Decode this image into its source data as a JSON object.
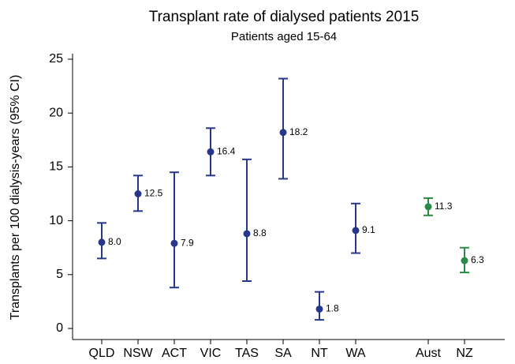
{
  "chart_data": {
    "type": "errorbar",
    "title": "Transplant rate of dialysed patients 2015",
    "subtitle": "Patients aged 15-64",
    "y_label": "Transplants per 100 dialysis-years (95% CI)",
    "categories": [
      "QLD",
      "NSW",
      "ACT",
      "VIC",
      "TAS",
      "SA",
      "NT",
      "WA",
      null,
      "Aust",
      "NZ"
    ],
    "values": [
      8.0,
      12.5,
      7.9,
      16.4,
      8.8,
      18.2,
      1.8,
      9.1,
      null,
      11.3,
      6.3
    ],
    "value_labels": [
      "8.0",
      "12.5",
      "7.9",
      "16.4",
      "8.8",
      "18.2",
      "1.8",
      "9.1",
      null,
      "11.3",
      "6.3"
    ],
    "ci_low": [
      6.5,
      10.9,
      3.8,
      14.2,
      4.4,
      13.9,
      0.8,
      7.0,
      null,
      10.5,
      5.2
    ],
    "ci_high": [
      9.8,
      14.2,
      14.5,
      18.6,
      15.7,
      23.2,
      3.4,
      11.6,
      null,
      12.1,
      7.5
    ],
    "colors": [
      "#27378c",
      "#27378c",
      "#27378c",
      "#27378c",
      "#27378c",
      "#27378c",
      "#27378c",
      "#27378c",
      null,
      "#2a8a45",
      "#2a8a45"
    ],
    "ylim": [
      0,
      25
    ],
    "yticks": [
      0,
      5,
      10,
      15,
      20,
      25
    ],
    "grid": false
  }
}
